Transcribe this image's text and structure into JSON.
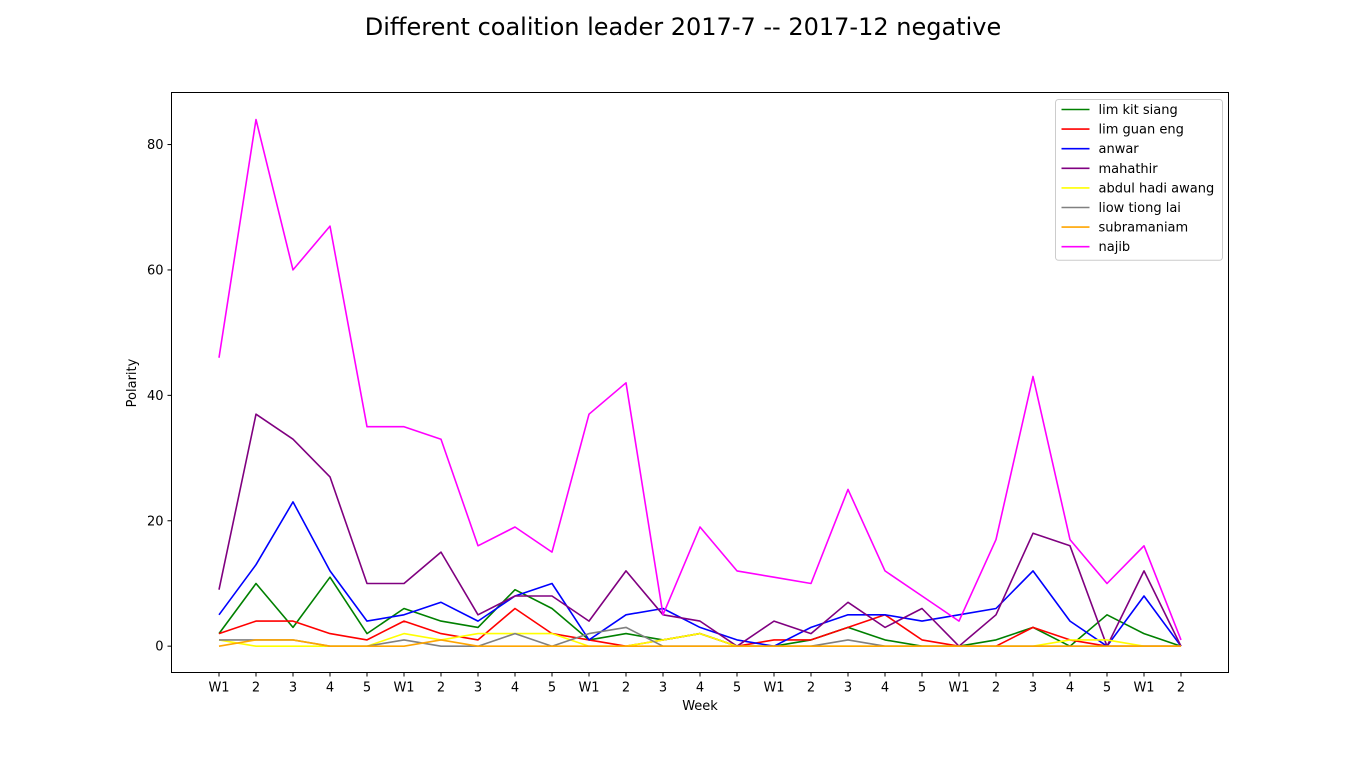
{
  "chart_data": {
    "type": "line",
    "title": "Different coalition leader 2017-7 -- 2017-12 negative",
    "xlabel": "Week",
    "ylabel": "Polarity",
    "ylim": [
      -4.2,
      88.3
    ],
    "yticks": [
      0,
      20,
      40,
      60,
      80
    ],
    "categories": [
      "W1",
      "2",
      "3",
      "4",
      "5",
      "W1",
      "2",
      "3",
      "4",
      "5",
      "W1",
      "2",
      "3",
      "4",
      "5",
      "W1",
      "2",
      "3",
      "4",
      "5",
      "W1",
      "2",
      "3",
      "4",
      "5",
      "W1",
      "2"
    ],
    "legend_position": "top-right",
    "grid": false,
    "series": [
      {
        "name": "lim kit siang",
        "color": "#008000",
        "values": [
          2,
          10,
          3,
          11,
          2,
          6,
          4,
          3,
          9,
          6,
          1,
          2,
          1,
          2,
          0,
          0,
          1,
          3,
          1,
          0,
          0,
          1,
          3,
          0,
          5,
          2,
          0
        ]
      },
      {
        "name": "lim guan eng",
        "color": "#ff0000",
        "values": [
          2,
          4,
          4,
          2,
          1,
          4,
          2,
          1,
          6,
          2,
          1,
          0,
          1,
          2,
          0,
          1,
          1,
          3,
          5,
          1,
          0,
          0,
          3,
          1,
          0,
          0,
          0
        ]
      },
      {
        "name": "anwar",
        "color": "#0000ff",
        "values": [
          5,
          13,
          23,
          12,
          4,
          5,
          7,
          4,
          8,
          10,
          1,
          5,
          6,
          3,
          1,
          0,
          3,
          5,
          5,
          4,
          5,
          6,
          12,
          4,
          0,
          8,
          0
        ]
      },
      {
        "name": "mahathir",
        "color": "#800080",
        "values": [
          9,
          37,
          33,
          27,
          10,
          10,
          15,
          5,
          8,
          8,
          4,
          12,
          5,
          4,
          0,
          4,
          2,
          7,
          3,
          6,
          0,
          5,
          18,
          16,
          0,
          12,
          0
        ]
      },
      {
        "name": "abdul hadi awang",
        "color": "#ffff00",
        "values": [
          1,
          0,
          0,
          0,
          0,
          2,
          1,
          2,
          2,
          2,
          0,
          0,
          1,
          2,
          0,
          0,
          0,
          0,
          0,
          0,
          0,
          0,
          0,
          1,
          1,
          0,
          0
        ]
      },
      {
        "name": "liow tiong lai",
        "color": "#808080",
        "values": [
          1,
          1,
          1,
          0,
          0,
          1,
          0,
          0,
          2,
          0,
          2,
          3,
          0,
          0,
          0,
          0,
          0,
          1,
          0,
          0,
          0,
          0,
          0,
          0,
          0,
          0,
          0
        ]
      },
      {
        "name": "subramaniam",
        "color": "#ffa500",
        "values": [
          0,
          1,
          1,
          0,
          0,
          0,
          1,
          0,
          0,
          0,
          0,
          0,
          0,
          0,
          0,
          0,
          0,
          0,
          0,
          0,
          0,
          0,
          0,
          0,
          0,
          0,
          0
        ]
      },
      {
        "name": "najib",
        "color": "#ff00ff",
        "values": [
          46,
          84,
          60,
          67,
          35,
          35,
          33,
          16,
          19,
          15,
          37,
          42,
          5,
          19,
          12,
          11,
          10,
          25,
          12,
          8,
          4,
          17,
          43,
          17,
          10,
          16,
          1
        ]
      }
    ]
  }
}
